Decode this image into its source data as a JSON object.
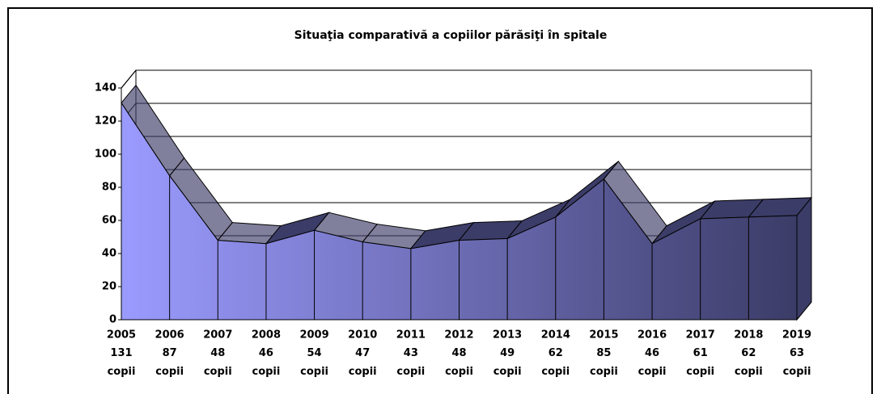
{
  "chart_data": {
    "type": "area3d",
    "title": "Situaţia comparativă a copiilor părăsiţi  în spitale",
    "categories": [
      "2005",
      "2006",
      "2007",
      "2008",
      "2009",
      "2010",
      "2011",
      "2012",
      "2013",
      "2014",
      "2015",
      "2016",
      "2017",
      "2018",
      "2019"
    ],
    "values": [
      131,
      87,
      48,
      46,
      54,
      47,
      43,
      48,
      49,
      62,
      85,
      46,
      61,
      62,
      63
    ],
    "value_labels": [
      "131 copii",
      "87 copii",
      "48 copii",
      "46 copii",
      "54 copii",
      "47 copii",
      "43 copii",
      "48 copii",
      "49 copii",
      "62 copii",
      "85 copii",
      "46 copii",
      "61 copii",
      "62 copii",
      "63 copii"
    ],
    "ylim": [
      0,
      140
    ],
    "yticks": [
      0,
      20,
      40,
      60,
      80,
      100,
      120,
      140
    ],
    "grid": true,
    "color_light": "#9b9bff",
    "color_dark": "#3c3c68"
  }
}
